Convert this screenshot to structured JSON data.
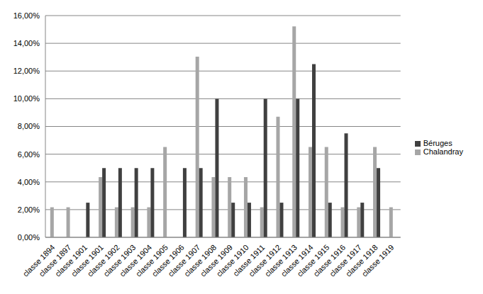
{
  "chart_data": {
    "type": "bar",
    "categories": [
      "classe 1894",
      "classe 1897",
      "classe 1901",
      "classe 1901",
      "classe 1902",
      "classe 1903",
      "classe 1904",
      "classe 1905",
      "classe 1906",
      "classe 1907",
      "classe 1908",
      "classe 1909",
      "classe 1910",
      "classe 1911",
      "classe 1912",
      "classe 1913",
      "classe 1914",
      "classe 1915",
      "classe 1916",
      "classe 1917",
      "classe 1918",
      "classe 1919"
    ],
    "series": [
      {
        "name": "Chalandray",
        "color": "#a6a6a6",
        "values": [
          2.17,
          2.17,
          0,
          4.35,
          2.17,
          2.17,
          2.17,
          6.52,
          0,
          13.04,
          4.35,
          4.35,
          4.35,
          2.17,
          8.7,
          15.22,
          6.52,
          6.52,
          2.17,
          2.17,
          6.52,
          2.17
        ]
      },
      {
        "name": "Béruges",
        "color": "#404040",
        "values": [
          0,
          0,
          2.5,
          5,
          5,
          5,
          5,
          0,
          5,
          5,
          10,
          2.5,
          2.5,
          10,
          2.5,
          10,
          12.5,
          2.5,
          7.5,
          2.5,
          5,
          0
        ]
      }
    ],
    "ylim": [
      0,
      16
    ],
    "yticks": [
      {
        "value": 0,
        "label": "0,00%"
      },
      {
        "value": 2,
        "label": "2,00%"
      },
      {
        "value": 4,
        "label": "4,00%"
      },
      {
        "value": 6,
        "label": "6,00%"
      },
      {
        "value": 8,
        "label": "8,00%"
      },
      {
        "value": 10,
        "label": "10,00%"
      },
      {
        "value": 12,
        "label": "12,00%"
      },
      {
        "value": 14,
        "label": "14,00%"
      },
      {
        "value": 16,
        "label": "16,00%"
      }
    ],
    "grid": true,
    "legend": "right"
  }
}
